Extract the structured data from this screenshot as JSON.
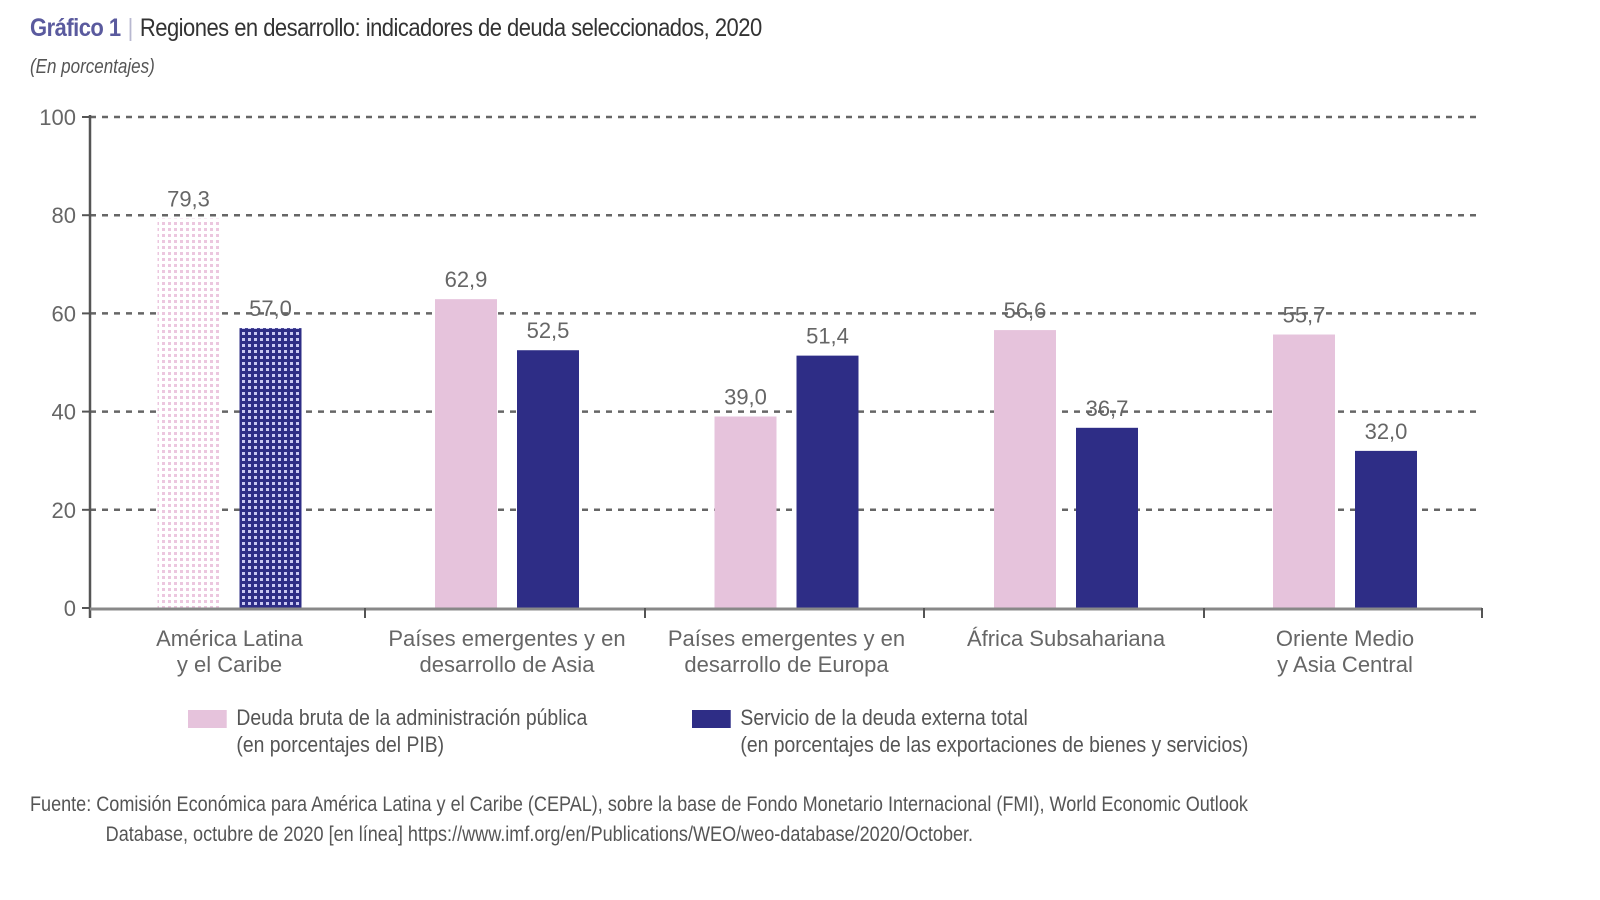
{
  "header": {
    "figure_number": "Gráfico 1",
    "separator": "|",
    "title": "Regiones en desarrollo: indicadores de deuda seleccionados, 2020",
    "subtitle": "(En porcentajes)"
  },
  "legend": [
    {
      "line1": "Deuda bruta de la administración pública",
      "line2": "(en porcentajes del PIB)"
    },
    {
      "line1": "Servicio de la deuda externa total",
      "line2": "(en porcentajes de las exportaciones de bienes y servicios)"
    }
  ],
  "source": {
    "line1": "Fuente: Comisión Económica para América Latina y el Caribe (CEPAL), sobre la base de Fondo Monetario Internacional (FMI), World Economic Outlook",
    "line2": "Database, octubre de 2020 [en línea] https://www.imf.org/en/Publications/WEO/weo-database/2020/October."
  },
  "chart_data": {
    "type": "bar",
    "title": "Regiones en desarrollo: indicadores de deuda seleccionados, 2020",
    "subtitle": "(En porcentajes)",
    "xlabel": "",
    "ylabel": "",
    "ylim": [
      0,
      100
    ],
    "yticks": [
      0,
      20,
      40,
      60,
      80,
      100
    ],
    "grid": true,
    "legend_position": "bottom",
    "categories": [
      [
        "América Latina",
        "y el Caribe"
      ],
      [
        "Países emergentes y en",
        "desarrollo de Asia"
      ],
      [
        "Países emergentes y en",
        "desarrollo de Europa"
      ],
      [
        "África Subsahariana"
      ],
      [
        "Oriente Medio",
        "y Asia Central"
      ]
    ],
    "series": [
      {
        "name": "Deuda bruta de la administración pública (en porcentajes del PIB)",
        "color": "#e6c3dc",
        "values": [
          79.3,
          62.9,
          39.0,
          56.6,
          55.7
        ],
        "labels": [
          "79,3",
          "62,9",
          "39,0",
          "56,6",
          "55,7"
        ]
      },
      {
        "name": "Servicio de la deuda externa total (en porcentajes de las exportaciones de bienes y servicios)",
        "color": "#2e2d86",
        "values": [
          57.0,
          52.5,
          51.4,
          36.7,
          32.0
        ],
        "labels": [
          "57,0",
          "52,5",
          "51,4",
          "36,7",
          "32,0"
        ]
      }
    ],
    "highlighted_category_index": 0
  }
}
